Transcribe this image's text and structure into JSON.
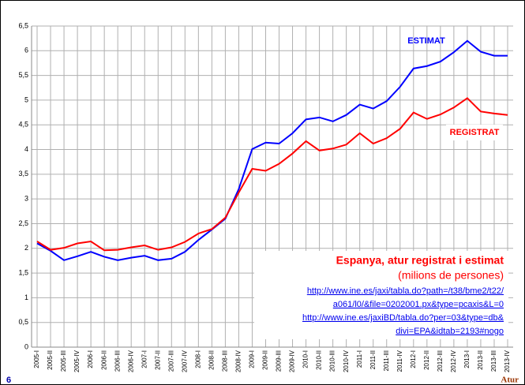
{
  "page_number": "6",
  "footer": "Atur",
  "chart_data": {
    "type": "line",
    "title": "Espanya, atur registrat i estimat",
    "subtitle": "(milions de persones)",
    "source_lines": [
      "http://www.ine.es/jaxi/tabla.do?path=/t38/bme2/t22/",
      "a061/l0/&file=0202001.px&type=pcaxis&L=0",
      "http://www.ine.es/jaxiBD/tabla.do?per=03&type=db&",
      "divi=EPA&idtab=2193#nogo"
    ],
    "categories": [
      "2005-I",
      "2005-II",
      "2005-III",
      "2005-IV",
      "2006-I",
      "2006-II",
      "2006-III",
      "2006-IV",
      "2007-I",
      "2007-II",
      "2007-III",
      "2007-IV",
      "2008-I",
      "2008-II",
      "2008-III",
      "2008-IV",
      "2009-I",
      "2009-II",
      "2009-III",
      "2009-IV",
      "2010-I",
      "2010-II",
      "2010-III",
      "2010-IV",
      "2011-I",
      "2011-II",
      "2011-III",
      "2011-IV",
      "2012-I",
      "2012-II",
      "2012-III",
      "2012-IV",
      "2013-I",
      "2013-II",
      "2013-III",
      "2013-IV"
    ],
    "series": [
      {
        "name": "ESTIMAT",
        "color": "#0000ff",
        "values": [
          2.1,
          1.95,
          1.76,
          1.84,
          1.93,
          1.83,
          1.76,
          1.81,
          1.85,
          1.76,
          1.79,
          1.93,
          2.17,
          2.38,
          2.6,
          3.2,
          4.01,
          4.14,
          4.12,
          4.33,
          4.61,
          4.65,
          4.57,
          4.7,
          4.91,
          4.83,
          4.98,
          5.27,
          5.64,
          5.69,
          5.78,
          5.97,
          6.2,
          5.98,
          5.9,
          5.9
        ]
      },
      {
        "name": "REGISTRAT",
        "color": "#ff0000",
        "values": [
          2.14,
          1.97,
          2.01,
          2.1,
          2.14,
          1.96,
          1.97,
          2.02,
          2.06,
          1.97,
          2.02,
          2.13,
          2.3,
          2.39,
          2.62,
          3.13,
          3.61,
          3.57,
          3.71,
          3.92,
          4.17,
          3.98,
          4.02,
          4.1,
          4.33,
          4.12,
          4.23,
          4.42,
          4.75,
          4.62,
          4.71,
          4.85,
          5.04,
          4.77,
          4.73,
          4.7
        ]
      }
    ],
    "ylim": [
      0,
      6.5
    ],
    "yticks": [
      0,
      {
        "value": 0.5,
        "label": "0,5"
      },
      1,
      {
        "value": 1.5,
        "label": "1,5"
      },
      2,
      {
        "value": 2.5,
        "label": "2,5"
      },
      3,
      {
        "value": 3.5,
        "label": "3,5"
      },
      4,
      {
        "value": 4.5,
        "label": "4,5"
      },
      5,
      {
        "value": 5.5,
        "label": "5,5"
      },
      6,
      {
        "value": 6.5,
        "label": "6,5"
      }
    ],
    "grid": true
  }
}
